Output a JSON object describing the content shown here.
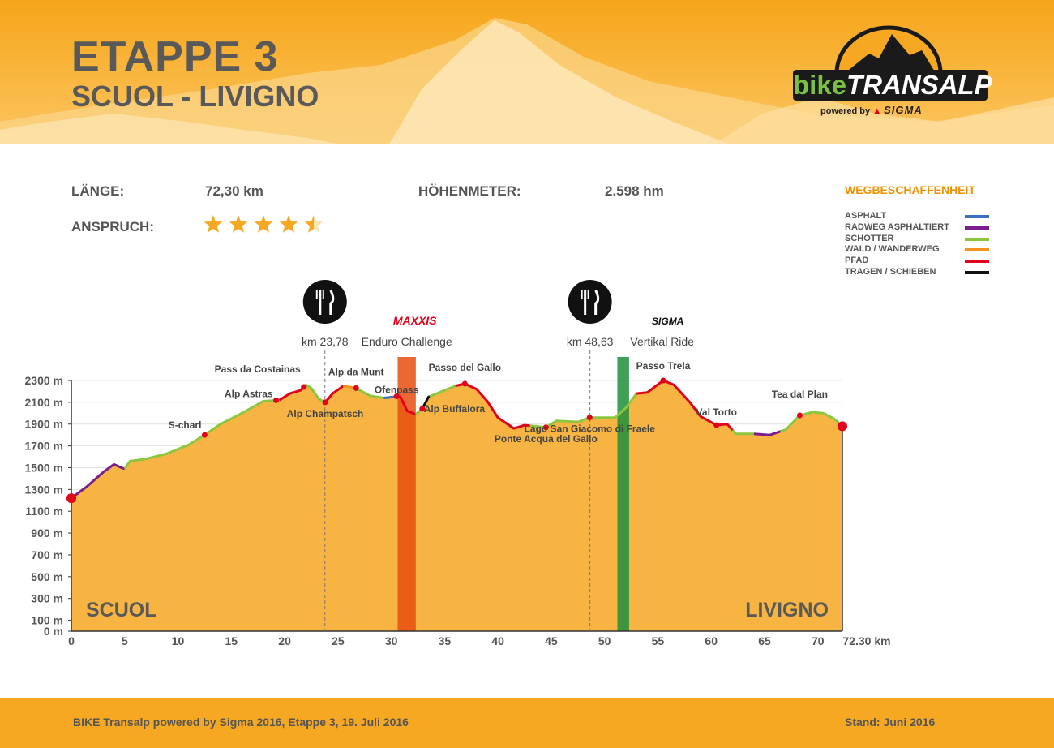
{
  "header": {
    "title": "ETAPPE 3",
    "subtitle": "SCUOL - LIVIGNO",
    "logo": {
      "brand_bike": "bike",
      "brand_transalp": "TRANSALP",
      "powered_by": "powered by",
      "sponsor": "SIGMA"
    }
  },
  "stats": {
    "length_label": "LÄNGE:",
    "length_value": "72,30 km",
    "elevation_label": "HÖHENMETER:",
    "elevation_value": "2.598 hm",
    "difficulty_label": "ANSPRUCH:",
    "difficulty_stars": 4.5
  },
  "legend": {
    "title": "WEGBESCHAFFENHEIT",
    "items": [
      {
        "label": "ASPHALT",
        "color": "#3a6fc4"
      },
      {
        "label": "RADWEG ASPHALTIERT",
        "color": "#7b1e8c"
      },
      {
        "label": "SCHOTTER",
        "color": "#8cc63f"
      },
      {
        "label": "WALD / WANDERWEG",
        "color": "#f7941d"
      },
      {
        "label": "PFAD",
        "color": "#e2001a"
      },
      {
        "label": "TRAGEN / SCHIEBEN",
        "color": "#111111"
      }
    ]
  },
  "chart_data": {
    "type": "area",
    "xlabel": "km",
    "x_end_label": "72.30 km",
    "x_ticks": [
      0,
      5,
      10,
      15,
      20,
      25,
      30,
      35,
      40,
      45,
      50,
      55,
      60,
      65,
      70
    ],
    "y_ticks": [
      0,
      100,
      300,
      500,
      700,
      900,
      1100,
      1300,
      1500,
      1700,
      1900,
      2100,
      2300
    ],
    "y_unit": "m",
    "xlim": [
      0,
      72.3
    ],
    "ylim": [
      0,
      2300
    ],
    "start_label": "SCUOL",
    "end_label": "LIVIGNO",
    "profile": [
      [
        0,
        1220
      ],
      [
        1.5,
        1330
      ],
      [
        3,
        1460
      ],
      [
        4,
        1530
      ],
      [
        4.7,
        1500
      ],
      [
        5,
        1490
      ],
      [
        5.5,
        1560
      ],
      [
        7,
        1580
      ],
      [
        9,
        1630
      ],
      [
        11,
        1710
      ],
      [
        12.5,
        1800
      ],
      [
        14,
        1900
      ],
      [
        16,
        2000
      ],
      [
        18,
        2110
      ],
      [
        19.5,
        2120
      ],
      [
        20.5,
        2180
      ],
      [
        21.5,
        2210
      ],
      [
        22,
        2260
      ],
      [
        22.5,
        2230
      ],
      [
        23.2,
        2130
      ],
      [
        23.8,
        2100
      ],
      [
        24.5,
        2180
      ],
      [
        25.5,
        2250
      ],
      [
        26.7,
        2230
      ],
      [
        28,
        2160
      ],
      [
        29.3,
        2140
      ],
      [
        30.2,
        2150
      ],
      [
        30.8,
        2160
      ],
      [
        31.5,
        2020
      ],
      [
        32.3,
        1990
      ],
      [
        32.9,
        2040
      ],
      [
        33.5,
        2150
      ],
      [
        35,
        2210
      ],
      [
        36,
        2250
      ],
      [
        36.9,
        2270
      ],
      [
        38,
        2220
      ],
      [
        39,
        2110
      ],
      [
        40,
        1960
      ],
      [
        41.5,
        1860
      ],
      [
        42.5,
        1890
      ],
      [
        44.5,
        1870
      ],
      [
        45.5,
        1930
      ],
      [
        47.5,
        1920
      ],
      [
        48.6,
        1960
      ],
      [
        51,
        1960
      ],
      [
        52,
        2050
      ],
      [
        53,
        2180
      ],
      [
        54,
        2190
      ],
      [
        55.5,
        2300
      ],
      [
        56.5,
        2260
      ],
      [
        58,
        2100
      ],
      [
        59,
        1970
      ],
      [
        60.5,
        1890
      ],
      [
        61.5,
        1900
      ],
      [
        62.3,
        1810
      ],
      [
        64,
        1810
      ],
      [
        65.5,
        1800
      ],
      [
        67,
        1850
      ],
      [
        68.3,
        1980
      ],
      [
        69.5,
        2010
      ],
      [
        70.5,
        2000
      ],
      [
        71.5,
        1950
      ],
      [
        72.3,
        1880
      ]
    ],
    "segments": [
      {
        "from": 0,
        "to": 5,
        "surface": "RADWEG ASPHALTIERT"
      },
      {
        "from": 5,
        "to": 19.5,
        "surface": "SCHOTTER"
      },
      {
        "from": 19.5,
        "to": 21.8,
        "surface": "PFAD"
      },
      {
        "from": 21.8,
        "to": 23.8,
        "surface": "SCHOTTER"
      },
      {
        "from": 23.8,
        "to": 25.5,
        "surface": "PFAD"
      },
      {
        "from": 25.5,
        "to": 26.7,
        "surface": "WALD / WANDERWEG"
      },
      {
        "from": 26.7,
        "to": 29.3,
        "surface": "SCHOTTER"
      },
      {
        "from": 29.3,
        "to": 30.8,
        "surface": "ASPHALT"
      },
      {
        "from": 30.8,
        "to": 32.3,
        "surface": "PFAD"
      },
      {
        "from": 32.3,
        "to": 32.9,
        "surface": "SCHOTTER"
      },
      {
        "from": 32.9,
        "to": 33.6,
        "surface": "TRAGEN / SCHIEBEN"
      },
      {
        "from": 33.6,
        "to": 36,
        "surface": "SCHOTTER"
      },
      {
        "from": 36,
        "to": 43,
        "surface": "PFAD"
      },
      {
        "from": 43,
        "to": 53,
        "surface": "SCHOTTER"
      },
      {
        "from": 53,
        "to": 62,
        "surface": "PFAD"
      },
      {
        "from": 62,
        "to": 64,
        "surface": "SCHOTTER"
      },
      {
        "from": 64,
        "to": 66.5,
        "surface": "RADWEG ASPHALTIERT"
      },
      {
        "from": 66.5,
        "to": 72.3,
        "surface": "SCHOTTER"
      }
    ],
    "waypoints": [
      {
        "km": 12.5,
        "label": "S-charl",
        "anchor": "left",
        "dy": -8
      },
      {
        "km": 19.2,
        "label": "Alp Astras",
        "anchor": "left",
        "dy": -4
      },
      {
        "km": 21.8,
        "label": "Pass da Costainas",
        "anchor": "left",
        "dy": -18
      },
      {
        "km": 23.8,
        "label": "Alp Champatsch",
        "anchor": "below",
        "dy": 18
      },
      {
        "km": 26.7,
        "label": "Alp da Munt",
        "anchor": "center",
        "dy": -16
      },
      {
        "km": 30.5,
        "label": "Ofenpass",
        "anchor": "center",
        "dy": -4
      },
      {
        "km": 32.9,
        "label": "Alp Buffalora",
        "anchor": "right",
        "dy": 4
      },
      {
        "km": 36.9,
        "label": "Passo del Gallo",
        "anchor": "center",
        "dy": -16
      },
      {
        "km": 44.5,
        "label": "Ponte Acqua del Gallo",
        "anchor": "center",
        "dy": 18
      },
      {
        "km": 48.6,
        "label": "Lago San Giacomo di Fraele",
        "anchor": "below",
        "dy": 18
      },
      {
        "km": 55.5,
        "label": "Passo Trela",
        "anchor": "center",
        "dy": -14
      },
      {
        "km": 60.5,
        "label": "Val Torto",
        "anchor": "center",
        "dy": -12
      },
      {
        "km": 68.3,
        "label": "Tea dal Plan",
        "anchor": "center",
        "dy": -22
      }
    ],
    "food_stations": [
      {
        "km": 23.78,
        "label": "km 23,78"
      },
      {
        "km": 48.63,
        "label": "km 48,63"
      }
    ],
    "special_stages": [
      {
        "from": 30.6,
        "to": 32.3,
        "label": "Enduro Challenge",
        "sponsor": "MAXXIS",
        "color": "#e84e0f"
      },
      {
        "from": 51.2,
        "to": 52.3,
        "label": "Vertikal Ride",
        "sponsor": "SIGMA",
        "color": "#1f8f3a"
      }
    ]
  },
  "footer": {
    "left": "BIKE Transalp powered by Sigma 2016, Etappe 3, 19. Juli 2016",
    "right": "Stand: Juni 2016"
  }
}
